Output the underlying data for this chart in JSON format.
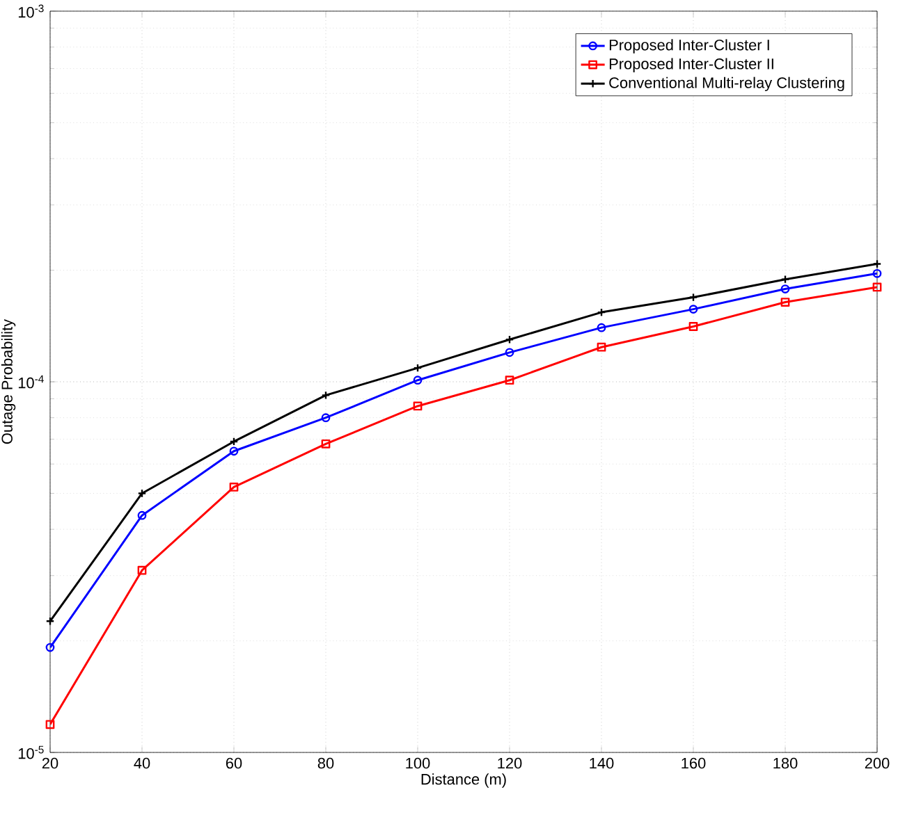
{
  "chart_data": {
    "type": "line",
    "xlabel": "Distance (m)",
    "ylabel": "Outage Probability",
    "log": "y",
    "grid": true,
    "legend": "top right",
    "line_style": "solid",
    "x": [
      20,
      40,
      60,
      80,
      100,
      120,
      140,
      160,
      180,
      200
    ],
    "xlim": [
      20,
      200
    ],
    "xticks": [
      20,
      40,
      60,
      80,
      100,
      120,
      140,
      160,
      180,
      200
    ],
    "ylim": [
      1e-05,
      0.001
    ],
    "yticks": [
      {
        "value": 1e-05,
        "label": "10$^{-5}$"
      },
      {
        "value": 0.0001,
        "label": "10$^{-4}$"
      },
      {
        "value": 0.001,
        "label": "10$^{-3}$"
      }
    ],
    "series": [
      {
        "name": "Proposed Inter-Cluster I",
        "color": "#0000ff",
        "marker": "circle",
        "values": [
          1.92e-05,
          4.36e-05,
          6.5e-05,
          8e-05,
          0.000101,
          0.00012,
          0.00014,
          0.000157,
          0.000178,
          0.000196
        ]
      },
      {
        "name": "Proposed Inter-Cluster II",
        "color": "#ff0000",
        "marker": "square",
        "values": [
          1.19e-05,
          3.1e-05,
          5.2e-05,
          6.8e-05,
          8.6e-05,
          0.000101,
          0.000124,
          0.000141,
          0.000164,
          0.00018
        ]
      },
      {
        "name": "Conventional Multi-relay Clustering",
        "color": "#000000",
        "marker": "cross",
        "values": [
          2.26e-05,
          5e-05,
          6.9e-05,
          9.2e-05,
          0.000109,
          0.00013,
          0.000154,
          0.000169,
          0.000189,
          0.000208
        ]
      }
    ]
  }
}
